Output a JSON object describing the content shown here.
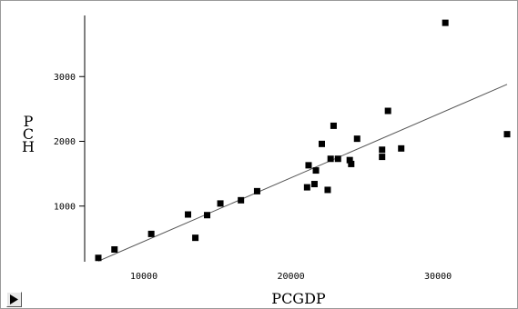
{
  "chart_data": {
    "type": "scatter",
    "title": "",
    "xlabel": "PCGDP",
    "ylabel": "PCH",
    "xlim": [
      6000,
      35000
    ],
    "ylim": [
      0,
      3900
    ],
    "x_ticks": [
      10000,
      20000,
      30000
    ],
    "x_tick_labels": [
      "10000",
      "20000",
      "30000"
    ],
    "y_ticks": [
      1000,
      2000,
      3000
    ],
    "y_tick_labels": [
      "1000",
      "2000",
      "3000"
    ],
    "grid": false,
    "legend": "none",
    "marker_color": "#000000",
    "line_color": "#555555",
    "points": [
      {
        "x": 6900,
        "y": 200
      },
      {
        "x": 8000,
        "y": 330
      },
      {
        "x": 10500,
        "y": 570
      },
      {
        "x": 13000,
        "y": 870
      },
      {
        "x": 13500,
        "y": 510
      },
      {
        "x": 14300,
        "y": 860
      },
      {
        "x": 15200,
        "y": 1040
      },
      {
        "x": 16600,
        "y": 1090
      },
      {
        "x": 17700,
        "y": 1230
      },
      {
        "x": 21100,
        "y": 1290
      },
      {
        "x": 21200,
        "y": 1630
      },
      {
        "x": 21600,
        "y": 1340
      },
      {
        "x": 21700,
        "y": 1550
      },
      {
        "x": 22100,
        "y": 1960
      },
      {
        "x": 22500,
        "y": 1250
      },
      {
        "x": 22700,
        "y": 1730
      },
      {
        "x": 22900,
        "y": 2240
      },
      {
        "x": 23200,
        "y": 1730
      },
      {
        "x": 24000,
        "y": 1710
      },
      {
        "x": 24100,
        "y": 1650
      },
      {
        "x": 24500,
        "y": 2040
      },
      {
        "x": 26200,
        "y": 1870
      },
      {
        "x": 26200,
        "y": 1760
      },
      {
        "x": 26600,
        "y": 2470
      },
      {
        "x": 27500,
        "y": 1890
      },
      {
        "x": 30500,
        "y": 3830
      },
      {
        "x": 34700,
        "y": 2110
      }
    ],
    "fit_line": {
      "x": [
        6900,
        34700
      ],
      "y": [
        150,
        2880
      ]
    }
  },
  "controls": {
    "play_icon": "play-triangle-icon"
  }
}
